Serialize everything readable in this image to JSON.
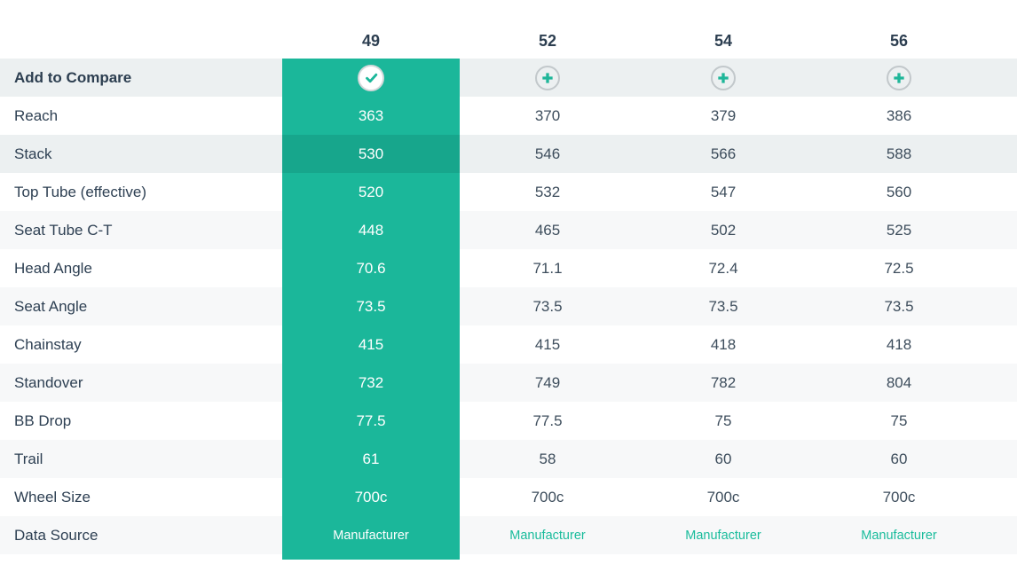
{
  "table": {
    "columns": [
      "49",
      "52",
      "54",
      "56"
    ],
    "selected_column": "49",
    "compare_label": "Add to Compare",
    "rows": [
      {
        "label": "Reach",
        "values": [
          "363",
          "370",
          "379",
          "386"
        ]
      },
      {
        "label": "Stack",
        "values": [
          "530",
          "546",
          "566",
          "588"
        ],
        "highlighted": true
      },
      {
        "label": "Top Tube (effective)",
        "values": [
          "520",
          "532",
          "547",
          "560"
        ]
      },
      {
        "label": "Seat Tube C-T",
        "values": [
          "448",
          "465",
          "502",
          "525"
        ]
      },
      {
        "label": "Head Angle",
        "values": [
          "70.6",
          "71.1",
          "72.4",
          "72.5"
        ]
      },
      {
        "label": "Seat Angle",
        "values": [
          "73.5",
          "73.5",
          "73.5",
          "73.5"
        ]
      },
      {
        "label": "Chainstay",
        "values": [
          "415",
          "415",
          "418",
          "418"
        ]
      },
      {
        "label": "Standover",
        "values": [
          "732",
          "749",
          "782",
          "804"
        ]
      },
      {
        "label": "BB Drop",
        "values": [
          "77.5",
          "77.5",
          "75",
          "75"
        ]
      },
      {
        "label": "Trail",
        "values": [
          "61",
          "58",
          "60",
          "60"
        ]
      },
      {
        "label": "Wheel Size",
        "values": [
          "700c",
          "700c",
          "700c",
          "700c"
        ]
      },
      {
        "label": "Data Source",
        "values": [
          "Manufacturer",
          "Manufacturer",
          "Manufacturer",
          "Manufacturer"
        ],
        "value_style": "link"
      }
    ],
    "icons": {
      "selected": "check-icon",
      "add": "plus-icon"
    },
    "colors": {
      "selected_column": "#1BB79A",
      "selected_column_highlight": "#17A68C",
      "row_stripe": "#F7F8F9",
      "row_shaded": "#ECF0F1",
      "heading_text": "#2C3E50",
      "value_text": "#3D4D5C",
      "link_text": "#1ABC9C",
      "icon_ring": "#C9CED1"
    }
  }
}
